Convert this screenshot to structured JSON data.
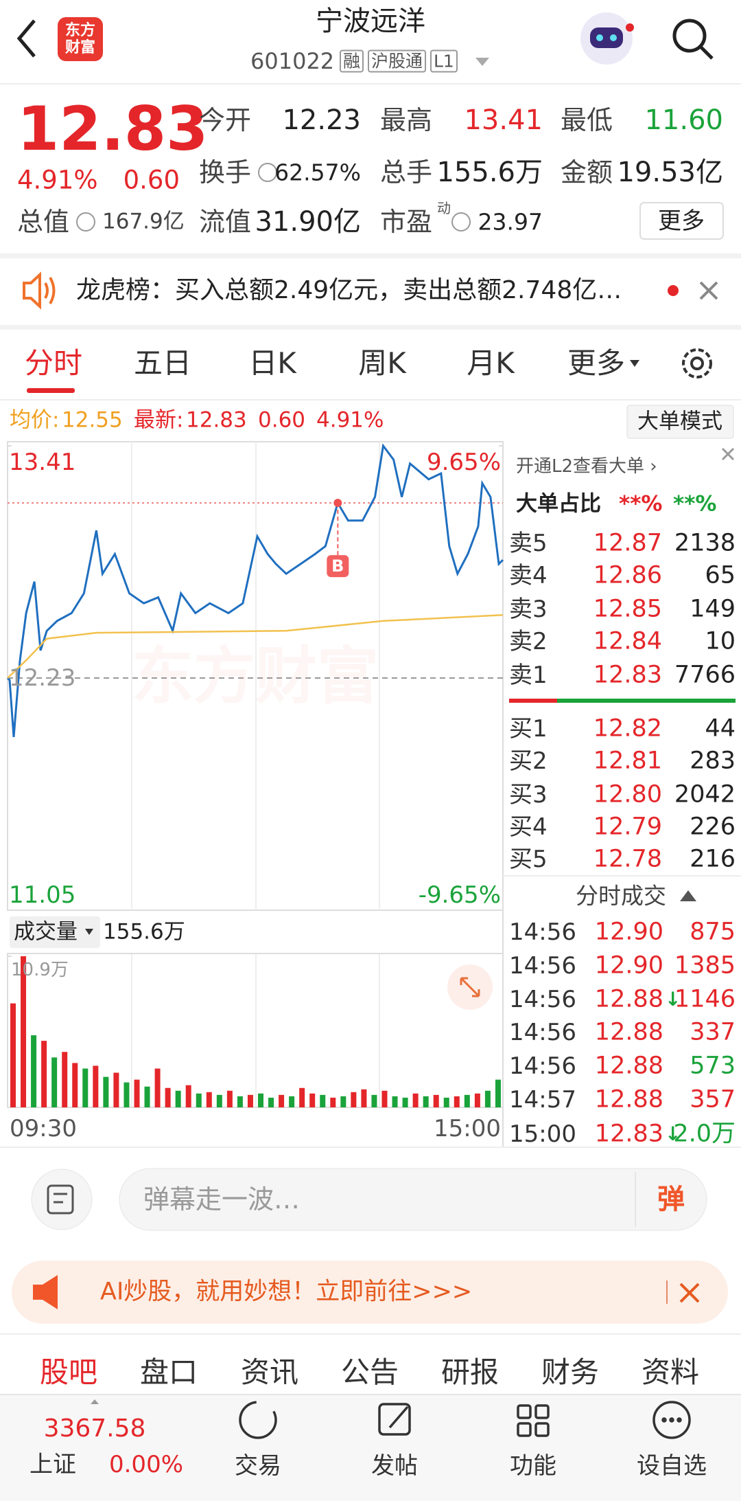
{
  "header": {
    "logo": [
      "东方",
      "财富"
    ],
    "title": "宁波远洋",
    "code": "601022",
    "tags": [
      "融",
      "沪股通",
      "L1"
    ]
  },
  "quote": {
    "price": "12.83",
    "change_pct": "4.91%",
    "change": "0.60",
    "total_value": {
      "label": "总值",
      "value": "167.9亿"
    },
    "fields": [
      [
        {
          "label": "今开",
          "value": "12.23"
        },
        {
          "label": "最高",
          "value": "13.41"
        },
        {
          "label": "最低",
          "value": "11.60"
        }
      ],
      [
        {
          "label": "换手",
          "value": "62.57%"
        },
        {
          "label": "总手",
          "value": "155.6万"
        },
        {
          "label": "金额",
          "value": "19.53亿"
        }
      ],
      [
        {
          "label": "流值",
          "value": "31.90亿"
        },
        {
          "label": "市盈",
          "sup": "动",
          "value": "23.97"
        }
      ]
    ],
    "more": "更多"
  },
  "notice": "龙虎榜：买入总额2.49亿元，卖出总额2.748亿…",
  "tabs": [
    "分时",
    "五日",
    "日K",
    "周K",
    "月K",
    "更多"
  ],
  "info": {
    "avg_label": "均价:",
    "avg": "12.55",
    "last_label": "最新:",
    "last": "12.83",
    "change": "0.60",
    "change_pct": "4.91%",
    "mode": "大单模式"
  },
  "chart_data": {
    "type": "line",
    "watermark": "东方财富",
    "xlim": [
      0,
      240
    ],
    "xticks": [
      {
        "value": 0,
        "label": "09:30"
      },
      {
        "value": 240,
        "label": "15:00"
      }
    ],
    "ylim": [
      11.05,
      13.41
    ],
    "yticks": [
      13.41,
      12.23,
      11.05
    ],
    "y2lim": [
      -9.65,
      9.65
    ],
    "y2ticks": [
      {
        "value": 9.65,
        "label": "9.65%"
      },
      {
        "value": -9.65,
        "label": "-9.65%"
      }
    ],
    "series": [
      {
        "color": "#1f6fc0",
        "x": [
          0,
          1,
          3,
          6,
          9,
          13,
          16,
          19,
          24,
          31,
          37,
          43,
          46,
          52,
          59,
          66,
          73,
          80,
          84,
          91,
          98,
          107,
          114,
          121,
          126,
          130,
          135,
          142,
          149,
          154,
          160,
          165,
          172,
          178,
          182,
          187,
          191,
          195,
          204,
          210,
          214,
          218,
          223,
          228,
          230,
          234,
          238,
          240
        ],
        "values": [
          12.23,
          12.22,
          11.93,
          12.32,
          12.56,
          12.72,
          12.37,
          12.47,
          12.52,
          12.56,
          12.66,
          12.98,
          12.76,
          12.86,
          12.66,
          12.61,
          12.64,
          12.47,
          12.66,
          12.56,
          12.61,
          12.56,
          12.61,
          12.95,
          12.86,
          12.81,
          12.76,
          12.81,
          12.86,
          12.9,
          13.12,
          13.03,
          13.03,
          13.15,
          13.41,
          13.34,
          13.15,
          13.32,
          13.24,
          13.27,
          12.9,
          12.76,
          12.86,
          13.0,
          13.22,
          13.15,
          12.81,
          12.83
        ]
      },
      {
        "color": "#f2c14e",
        "x": [
          0,
          9,
          19,
          43,
          135,
          182,
          240
        ],
        "values": [
          12.23,
          12.32,
          12.43,
          12.46,
          12.47,
          12.52,
          12.55
        ]
      }
    ],
    "annotations": [
      {
        "label": "B",
        "x": 160,
        "y": 13.12
      }
    ],
    "volume": {
      "label": "成交量",
      "total": "155.6万",
      "ylim": [
        0,
        10.9
      ],
      "yticks": [
        {
          "value": 10.9,
          "label": "10.9万"
        }
      ],
      "x": [
        0,
        5,
        10,
        15,
        20,
        25,
        30,
        35,
        40,
        45,
        50,
        55,
        60,
        65,
        70,
        75,
        80,
        85,
        90,
        95,
        100,
        105,
        110,
        115,
        120,
        125,
        130,
        135,
        140,
        145,
        150,
        155,
        160,
        165,
        170,
        175,
        180,
        185,
        190,
        195,
        200,
        205,
        210,
        215,
        220,
        225,
        230,
        235
      ],
      "values": [
        7.5,
        10.9,
        5.2,
        4.8,
        3.6,
        4.0,
        3.2,
        2.8,
        3.0,
        2.2,
        2.5,
        1.8,
        2.0,
        1.5,
        2.8,
        1.4,
        1.2,
        1.6,
        1.0,
        1.1,
        0.9,
        1.2,
        0.8,
        0.9,
        1.0,
        0.7,
        0.9,
        0.8,
        1.4,
        1.0,
        0.9,
        0.7,
        0.8,
        1.1,
        1.3,
        0.9,
        1.2,
        0.8,
        0.7,
        1.0,
        0.8,
        0.9,
        0.7,
        0.8,
        0.9,
        1.0,
        1.2,
        2.0
      ],
      "colors": [
        "#e4262a",
        "#e4262a",
        "#1aa33a",
        "#e4262a",
        "#1aa33a",
        "#e4262a",
        "#e4262a",
        "#1aa33a",
        "#e4262a",
        "#1aa33a",
        "#e4262a",
        "#1aa33a",
        "#e4262a",
        "#1aa33a",
        "#e4262a",
        "#e4262a",
        "#1aa33a",
        "#e4262a",
        "#1aa33a",
        "#e4262a",
        "#1aa33a",
        "#e4262a",
        "#1aa33a",
        "#e4262a",
        "#1aa33a",
        "#1aa33a",
        "#e4262a",
        "#1aa33a",
        "#e4262a",
        "#e4262a",
        "#1aa33a",
        "#e4262a",
        "#1aa33a",
        "#e4262a",
        "#e4262a",
        "#1aa33a",
        "#e4262a",
        "#1aa33a",
        "#1aa33a",
        "#e4262a",
        "#1aa33a",
        "#e4262a",
        "#1aa33a",
        "#e4262a",
        "#1aa33a",
        "#e4262a",
        "#1aa33a",
        "#1aa33a"
      ]
    }
  },
  "order_book": {
    "link": "开通L2查看大单 ›",
    "ratio_label": "大单占比",
    "ratio": [
      "**%",
      "**%"
    ],
    "asks": [
      {
        "label": "卖5",
        "price": "12.87",
        "volume": "2138"
      },
      {
        "label": "卖4",
        "price": "12.86",
        "volume": "65"
      },
      {
        "label": "卖3",
        "price": "12.85",
        "volume": "149"
      },
      {
        "label": "卖2",
        "price": "12.84",
        "volume": "10"
      },
      {
        "label": "卖1",
        "price": "12.83",
        "volume": "7766"
      }
    ],
    "bids": [
      {
        "label": "买1",
        "price": "12.82",
        "volume": "44"
      },
      {
        "label": "买2",
        "price": "12.81",
        "volume": "283"
      },
      {
        "label": "买3",
        "price": "12.80",
        "volume": "2042"
      },
      {
        "label": "买4",
        "price": "12.79",
        "volume": "226"
      },
      {
        "label": "买5",
        "price": "12.78",
        "volume": "216"
      }
    ],
    "trades_title": "分时成交",
    "trades": [
      {
        "time": "14:56",
        "price": "12.90",
        "volume": "875",
        "color": "#e4262a"
      },
      {
        "time": "14:56",
        "price": "12.90",
        "volume": "1385",
        "color": "#e4262a"
      },
      {
        "time": "14:56",
        "price": "12.88",
        "arrow": "↓",
        "volume": "1146",
        "color": "#e4262a"
      },
      {
        "time": "14:56",
        "price": "12.88",
        "volume": "337",
        "color": "#e4262a"
      },
      {
        "time": "14:56",
        "price": "12.88",
        "volume": "573",
        "color": "#1aa33a"
      },
      {
        "time": "14:57",
        "price": "12.88",
        "volume": "357",
        "color": "#e4262a"
      },
      {
        "time": "15:00",
        "price": "12.83",
        "arrow": "↓",
        "volume": "2.0万",
        "color": "#1aa33a"
      }
    ]
  },
  "comment": {
    "placeholder": "弹幕走一波…",
    "button": "弹"
  },
  "ad": "AI炒股，就用妙想！立即前往>>>",
  "sub_tabs": [
    "股吧",
    "盘口",
    "资讯",
    "公告",
    "研报",
    "财务",
    "资料"
  ],
  "bottom_nav": {
    "index": {
      "value": "3367.58",
      "name": "上证",
      "change": "0.00%"
    },
    "items": [
      "交易",
      "发帖",
      "功能",
      "设自选"
    ]
  }
}
